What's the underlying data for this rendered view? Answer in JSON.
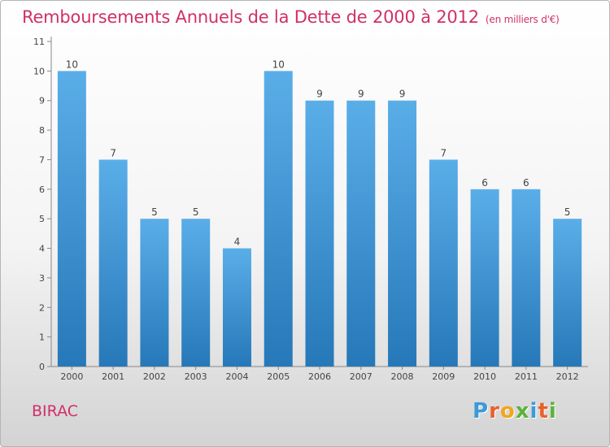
{
  "title": "Remboursements Annuels de la Dette de 2000 à 2012",
  "unit": "(en milliers d'€)",
  "commune": "BIRAC",
  "logo": {
    "letters": [
      "P",
      "r",
      "o",
      "x",
      "i",
      "t",
      "i"
    ],
    "colors": [
      "#3b9ad8",
      "#e8612c",
      "#f2a61d",
      "#5cb33b",
      "#3b9ad8",
      "#e8612c",
      "#5cb33b"
    ]
  },
  "chart_data": {
    "type": "bar",
    "categories": [
      "2000",
      "2001",
      "2002",
      "2003",
      "2004",
      "2005",
      "2006",
      "2007",
      "2008",
      "2009",
      "2010",
      "2011",
      "2012"
    ],
    "values": [
      10,
      7,
      5,
      5,
      4,
      10,
      9,
      9,
      9,
      7,
      6,
      6,
      5
    ],
    "yticks": [
      0,
      1,
      2,
      3,
      4,
      5,
      6,
      7,
      8,
      9,
      10,
      11
    ],
    "ylim": [
      0,
      11
    ],
    "xlabel": "",
    "ylabel": "",
    "grid": false,
    "bar_color_top": "#5aaee8",
    "bar_color_bottom": "#2678b8"
  }
}
